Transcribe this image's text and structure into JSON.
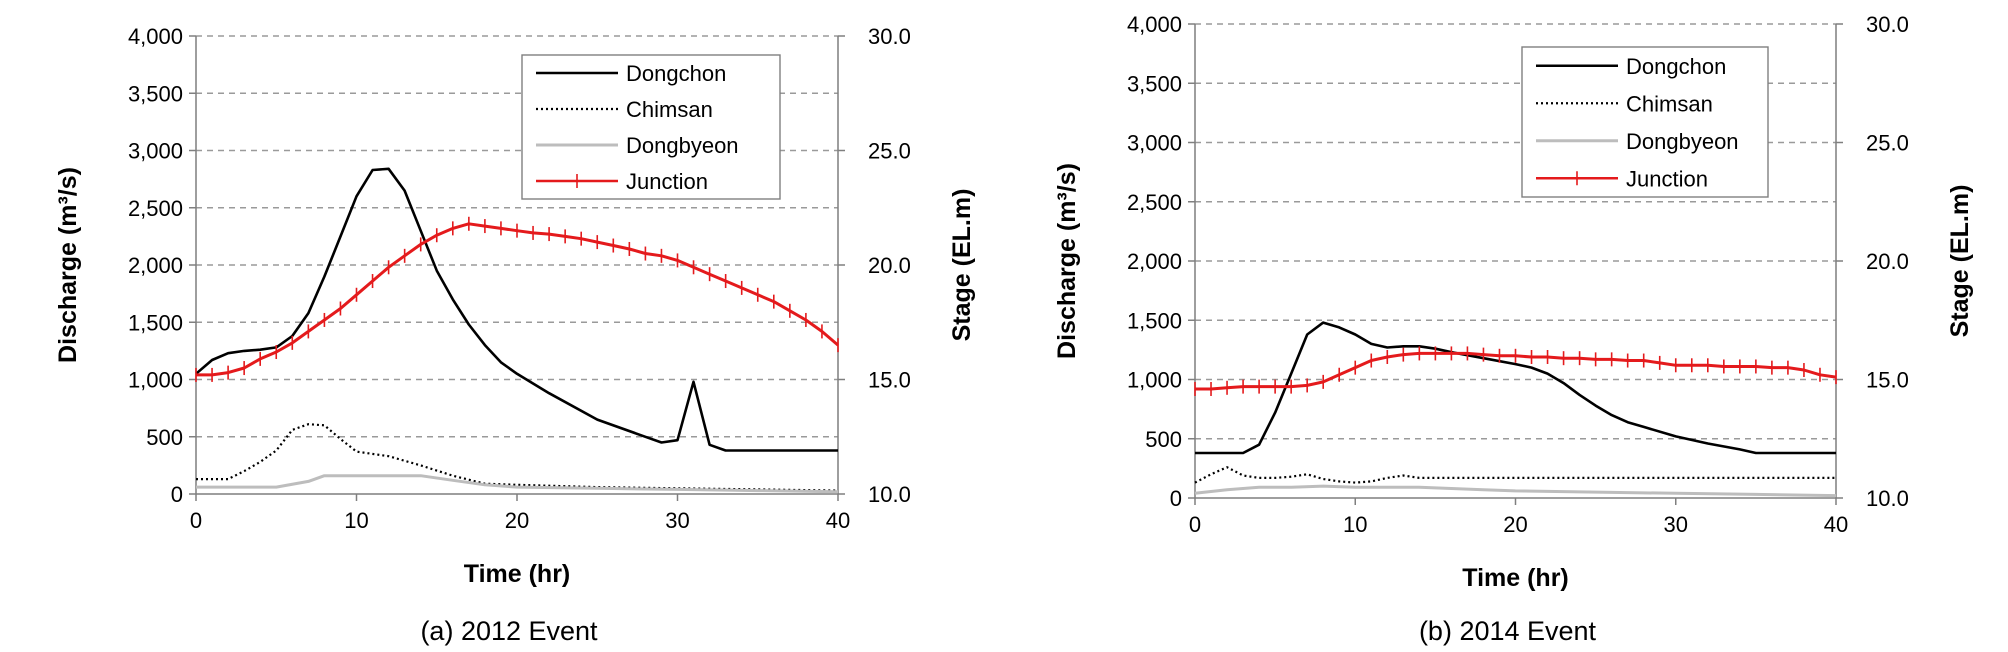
{
  "chart_data": [
    {
      "type": "line",
      "caption": "(a) 2012 Event",
      "xlabel": "Time (hr)",
      "ylabel": "Discharge (m³/s)",
      "y2label": "Stage (EL.m)",
      "xlim": [
        0,
        40
      ],
      "ylim": [
        0,
        4000
      ],
      "y2lim": [
        10,
        30
      ],
      "xticks": [
        0,
        10,
        20,
        30,
        40
      ],
      "yticks": [
        "0",
        "500",
        "1,000",
        "1,500",
        "2,000",
        "2,500",
        "3,000",
        "3,500",
        "4,000"
      ],
      "y2ticks": [
        "10.0",
        "15.0",
        "20.0",
        "25.0",
        "30.0"
      ],
      "grid": "horizontal dashed",
      "legend_position": "top-right",
      "series": [
        {
          "name": "Dongchon",
          "axis": "left",
          "style": "solid",
          "color": "#000000",
          "x": [
            0,
            1,
            2,
            3,
            4,
            5,
            6,
            7,
            8,
            9,
            10,
            11,
            12,
            13,
            14,
            15,
            16,
            17,
            18,
            19,
            20,
            22,
            25,
            28,
            29,
            30,
            31,
            32,
            33,
            34,
            40
          ],
          "y": [
            1050,
            1170,
            1230,
            1250,
            1260,
            1280,
            1380,
            1580,
            1900,
            2250,
            2600,
            2830,
            2840,
            2650,
            2300,
            1950,
            1700,
            1480,
            1300,
            1150,
            1050,
            880,
            650,
            500,
            450,
            470,
            980,
            430,
            380,
            380,
            380
          ]
        },
        {
          "name": "Chimsan",
          "axis": "left",
          "style": "dotted",
          "color": "#000000",
          "x": [
            0,
            1,
            2,
            3,
            4,
            5,
            6,
            7,
            8,
            9,
            10,
            12,
            14,
            16,
            18,
            20,
            25,
            30,
            35,
            40
          ],
          "y": [
            130,
            130,
            130,
            200,
            280,
            380,
            560,
            610,
            600,
            480,
            370,
            330,
            250,
            160,
            90,
            80,
            60,
            50,
            40,
            30
          ]
        },
        {
          "name": "Dongbyeon",
          "axis": "left",
          "style": "solid",
          "color": "#bdbdbd",
          "x": [
            0,
            3,
            5,
            7,
            8,
            10,
            12,
            14,
            16,
            18,
            20,
            25,
            30,
            35,
            40
          ],
          "y": [
            60,
            60,
            60,
            110,
            160,
            160,
            160,
            160,
            120,
            80,
            60,
            50,
            40,
            30,
            20
          ]
        },
        {
          "name": "Junction",
          "axis": "right",
          "style": "solid-marker",
          "color": "#e41a1c",
          "x": [
            0,
            1,
            2,
            3,
            4,
            5,
            6,
            7,
            8,
            9,
            10,
            11,
            12,
            13,
            14,
            15,
            16,
            17,
            18,
            19,
            20,
            21,
            22,
            23,
            24,
            25,
            26,
            27,
            28,
            29,
            30,
            31,
            32,
            33,
            34,
            35,
            36,
            37,
            38,
            39,
            40
          ],
          "y": [
            15.2,
            15.2,
            15.3,
            15.5,
            15.9,
            16.2,
            16.6,
            17.1,
            17.6,
            18.1,
            18.7,
            19.3,
            19.9,
            20.4,
            20.9,
            21.3,
            21.6,
            21.8,
            21.7,
            21.6,
            21.5,
            21.4,
            21.35,
            21.25,
            21.15,
            21.0,
            20.85,
            20.7,
            20.5,
            20.4,
            20.2,
            19.9,
            19.6,
            19.3,
            19.0,
            18.7,
            18.4,
            18.0,
            17.6,
            17.1,
            16.5
          ]
        }
      ]
    },
    {
      "type": "line",
      "caption": "(b) 2014 Event",
      "xlabel": "Time (hr)",
      "ylabel": "Discharge (m³/s)",
      "y2label": "Stage (EL.m)",
      "xlim": [
        0,
        40
      ],
      "ylim": [
        0,
        4000
      ],
      "y2lim": [
        10,
        30
      ],
      "xticks": [
        0,
        10,
        20,
        30,
        40
      ],
      "yticks": [
        "0",
        "500",
        "1,000",
        "1,500",
        "2,000",
        "2,500",
        "3,000",
        "3,500",
        "4,000"
      ],
      "y2ticks": [
        "10.0",
        "15.0",
        "20.0",
        "25.0",
        "30.0"
      ],
      "grid": "horizontal dashed",
      "legend_position": "top-right",
      "series": [
        {
          "name": "Dongchon",
          "axis": "left",
          "style": "solid",
          "color": "#000000",
          "x": [
            0,
            3,
            4,
            5,
            6,
            7,
            8,
            9,
            10,
            11,
            12,
            13,
            14,
            15,
            16,
            18,
            20,
            21,
            22,
            23,
            24,
            25,
            26,
            27,
            28,
            30,
            32,
            34,
            35,
            40
          ],
          "y": [
            380,
            380,
            450,
            720,
            1050,
            1380,
            1480,
            1440,
            1380,
            1300,
            1270,
            1280,
            1280,
            1260,
            1230,
            1180,
            1130,
            1100,
            1050,
            970,
            870,
            780,
            700,
            640,
            600,
            520,
            460,
            410,
            380,
            380
          ]
        },
        {
          "name": "Chimsan",
          "axis": "left",
          "style": "dotted",
          "color": "#000000",
          "x": [
            0,
            1,
            2,
            3,
            4,
            5,
            6,
            7,
            8,
            9,
            10,
            11,
            12,
            13,
            14,
            15,
            20,
            25,
            30,
            35,
            40
          ],
          "y": [
            130,
            200,
            260,
            190,
            170,
            170,
            180,
            200,
            160,
            140,
            130,
            140,
            170,
            190,
            170,
            170,
            170,
            170,
            170,
            170,
            170
          ]
        },
        {
          "name": "Dongbyeon",
          "axis": "left",
          "style": "solid",
          "color": "#bdbdbd",
          "x": [
            0,
            2,
            4,
            6,
            8,
            10,
            12,
            14,
            16,
            18,
            20,
            25,
            30,
            35,
            40
          ],
          "y": [
            40,
            70,
            90,
            90,
            100,
            90,
            90,
            90,
            80,
            70,
            60,
            50,
            40,
            30,
            20
          ]
        },
        {
          "name": "Junction",
          "axis": "right",
          "style": "solid-marker",
          "color": "#e41a1c",
          "x": [
            0,
            1,
            2,
            3,
            4,
            5,
            6,
            7,
            8,
            9,
            10,
            11,
            12,
            13,
            14,
            15,
            16,
            17,
            18,
            19,
            20,
            21,
            22,
            23,
            24,
            25,
            26,
            27,
            28,
            29,
            30,
            31,
            32,
            33,
            34,
            35,
            36,
            37,
            38,
            39,
            40
          ],
          "y": [
            14.6,
            14.6,
            14.65,
            14.7,
            14.7,
            14.7,
            14.7,
            14.75,
            14.9,
            15.2,
            15.5,
            15.8,
            15.95,
            16.05,
            16.1,
            16.1,
            16.1,
            16.1,
            16.05,
            16.0,
            16.0,
            15.95,
            15.95,
            15.9,
            15.9,
            15.85,
            15.85,
            15.8,
            15.8,
            15.7,
            15.6,
            15.6,
            15.6,
            15.55,
            15.55,
            15.55,
            15.5,
            15.5,
            15.4,
            15.2,
            15.1
          ]
        }
      ]
    }
  ]
}
